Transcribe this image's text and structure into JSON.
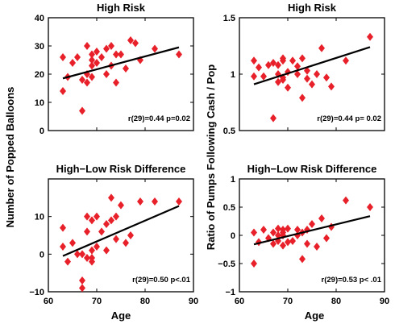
{
  "figure": {
    "ylabel_left": "Number of  Popped Balloons",
    "ylabel_right": "Ratio of Pumps Following Cash / Pop",
    "xlabel": "Age"
  },
  "colors": {
    "marker": "#e8202a",
    "line": "#000000",
    "axes": "#000000"
  },
  "chart_data": [
    {
      "type": "scatter",
      "title": "High Risk",
      "annotation": "r(29)=0.44 p=0.02",
      "xlim": [
        60,
        90
      ],
      "ylim": [
        0,
        40
      ],
      "xticks": [
        60,
        70,
        80,
        90
      ],
      "yticks": [
        0,
        10,
        20,
        30,
        40
      ],
      "xticklabels": [
        "",
        "",
        "",
        ""
      ],
      "yticklabels": [
        "0",
        "10",
        "20",
        "30",
        "40"
      ],
      "x": [
        63,
        63,
        64,
        65,
        66,
        67,
        67,
        68,
        68,
        68,
        69,
        69,
        69,
        69,
        70,
        70,
        71,
        72,
        72,
        73,
        73,
        74,
        74,
        75,
        76,
        77,
        78,
        79,
        82,
        87
      ],
      "y": [
        26,
        14,
        19,
        24,
        26,
        7,
        18,
        30,
        17,
        20,
        27,
        25,
        23,
        19,
        24,
        28,
        26,
        29,
        20,
        30,
        23,
        17,
        27,
        27,
        22,
        32,
        31,
        25,
        29,
        27
      ],
      "fit_line": {
        "x": [
          63,
          87
        ],
        "y": [
          18.5,
          29.5
        ]
      }
    },
    {
      "type": "scatter",
      "title": "High Risk",
      "annotation": "r(29)=0.44 p= 0.02",
      "xlim": [
        60,
        90
      ],
      "ylim": [
        0.5,
        1.5
      ],
      "xticks": [
        60,
        70,
        80,
        90
      ],
      "yticks": [
        0.5,
        1,
        1.5
      ],
      "xticklabels": [
        "",
        "",
        "",
        ""
      ],
      "yticklabels": [
        "0.5",
        "1",
        "1.5"
      ],
      "x": [
        63,
        63,
        64,
        65,
        66,
        67,
        67,
        68,
        68,
        68,
        69,
        69,
        69,
        69,
        70,
        70,
        71,
        72,
        72,
        73,
        73,
        74,
        74,
        75,
        76,
        77,
        78,
        79,
        82,
        87
      ],
      "y": [
        1.12,
        0.98,
        1.06,
        0.98,
        1.08,
        0.61,
        1.1,
        1.08,
        0.93,
        1.0,
        0.95,
        1.12,
        1.14,
        0.97,
        1.02,
        0.88,
        1.12,
        1.07,
        1.0,
        1.14,
        0.79,
        1.03,
        0.96,
        0.91,
        1.0,
        1.23,
        0.97,
        0.89,
        1.12,
        1.33
      ],
      "fit_line": {
        "x": [
          63,
          87
        ],
        "y": [
          0.91,
          1.24
        ]
      }
    },
    {
      "type": "scatter",
      "title": "High−Low Risk Difference",
      "annotation": "r(29)=0.50 p<.01",
      "xlim": [
        60,
        90
      ],
      "ylim": [
        -10,
        20
      ],
      "xticks": [
        60,
        70,
        80,
        90
      ],
      "yticks": [
        -10,
        0,
        10
      ],
      "xticklabels": [
        "60",
        "70",
        "80",
        "90"
      ],
      "yticklabels": [
        "−10",
        "0",
        "10"
      ],
      "x": [
        63,
        63,
        64,
        65,
        66,
        67,
        67,
        67,
        68,
        68,
        68,
        69,
        69,
        69,
        69,
        70,
        70,
        71,
        72,
        72,
        73,
        73,
        74,
        74,
        75,
        76,
        77,
        79,
        82,
        87
      ],
      "y": [
        7,
        2,
        -2,
        3,
        0,
        -7,
        -9,
        0,
        10,
        6,
        -1,
        9,
        1,
        -1,
        -2,
        10,
        2,
        6,
        8,
        1,
        15,
        9,
        4,
        10,
        13,
        3,
        5,
        14,
        14,
        14
      ],
      "fit_line": {
        "x": [
          63,
          87
        ],
        "y": [
          -0.5,
          12.8
        ]
      }
    },
    {
      "type": "scatter",
      "title": "High−Low Risk Difference",
      "annotation": "r(29)=0.53 p< .01",
      "xlim": [
        60,
        90
      ],
      "ylim": [
        -1,
        1
      ],
      "xticks": [
        60,
        70,
        80,
        90
      ],
      "yticks": [
        -1,
        -0.5,
        0,
        0.5,
        1
      ],
      "xticklabels": [
        "60",
        "70",
        "80",
        "90"
      ],
      "yticklabels": [
        "−1",
        "−0.5",
        "0",
        "0.5",
        "1"
      ],
      "x": [
        63,
        63,
        64,
        65,
        66,
        67,
        67,
        68,
        68,
        68,
        69,
        69,
        69,
        69,
        70,
        70,
        71,
        72,
        72,
        73,
        73,
        74,
        74,
        75,
        76,
        77,
        78,
        79,
        82,
        87
      ],
      "y": [
        0.05,
        -0.5,
        -0.12,
        0.1,
        -0.05,
        -0.15,
        0.05,
        -0.1,
        0.0,
        0.12,
        -0.18,
        0.1,
        0.05,
        0.0,
        -0.12,
        0.12,
        -0.1,
        0.1,
        0.0,
        -0.42,
        0.05,
        0.1,
        -0.15,
        0.2,
        -0.2,
        0.3,
        -0.05,
        0.15,
        0.62,
        0.5
      ],
      "fit_line": {
        "x": [
          63,
          87
        ],
        "y": [
          -0.16,
          0.34
        ]
      }
    }
  ]
}
